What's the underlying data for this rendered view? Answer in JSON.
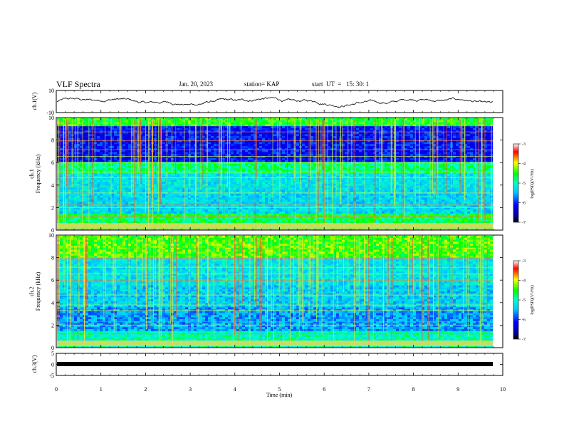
{
  "header": {
    "title": "VLF Spectra",
    "date": "Jan. 20, 2023",
    "station": "station= KAP",
    "start": "start  UT  =   15: 30: 1"
  },
  "chart_data": [
    {
      "type": "line",
      "panel": "ch1-waveform",
      "ylabel": "ch.1(V)",
      "ylim": [
        -10,
        10
      ],
      "yticks": [
        "10",
        "-10"
      ],
      "xlim": [
        0,
        10
      ],
      "color": "#000000"
    },
    {
      "type": "heatmap",
      "panel": "ch1-spectrogram",
      "ylabel_line1": "ch.1",
      "ylabel_line2": "Frequency (kHz)",
      "ylim": [
        0,
        10
      ],
      "yticks": [
        "0",
        "2",
        "4",
        "6",
        "8",
        "10"
      ],
      "xlim": [
        0,
        10
      ],
      "colorbar": {
        "label": "log(PSD)(V²/Hz)",
        "range": [
          -7,
          -3
        ],
        "ticks": [
          "-3",
          "-4",
          "-5",
          "-6",
          "-7"
        ]
      }
    },
    {
      "type": "heatmap",
      "panel": "ch2-spectrogram",
      "ylabel_line1": "ch.2",
      "ylabel_line2": "Frequency (kHz)",
      "ylim": [
        0,
        10
      ],
      "yticks": [
        "0",
        "2",
        "4",
        "6",
        "8",
        "10"
      ],
      "xlim": [
        0,
        10
      ],
      "colorbar": {
        "label": "log(PSD)(V²/Hz)",
        "range": [
          -7,
          -3
        ],
        "ticks": [
          "-3",
          "-4",
          "-5",
          "-6",
          "-7"
        ]
      }
    },
    {
      "type": "line",
      "panel": "ch3-waveform",
      "ylabel": "ch.3(V)",
      "ylim": [
        -5,
        5
      ],
      "yticks": [
        "5",
        "0",
        "-5"
      ],
      "xlim": [
        0,
        10
      ],
      "value": -0.5
    }
  ],
  "xaxis": {
    "label": "Time (min)",
    "ticks": [
      "0",
      "1",
      "2",
      "3",
      "4",
      "5",
      "6",
      "7",
      "8",
      "9",
      "10"
    ]
  }
}
